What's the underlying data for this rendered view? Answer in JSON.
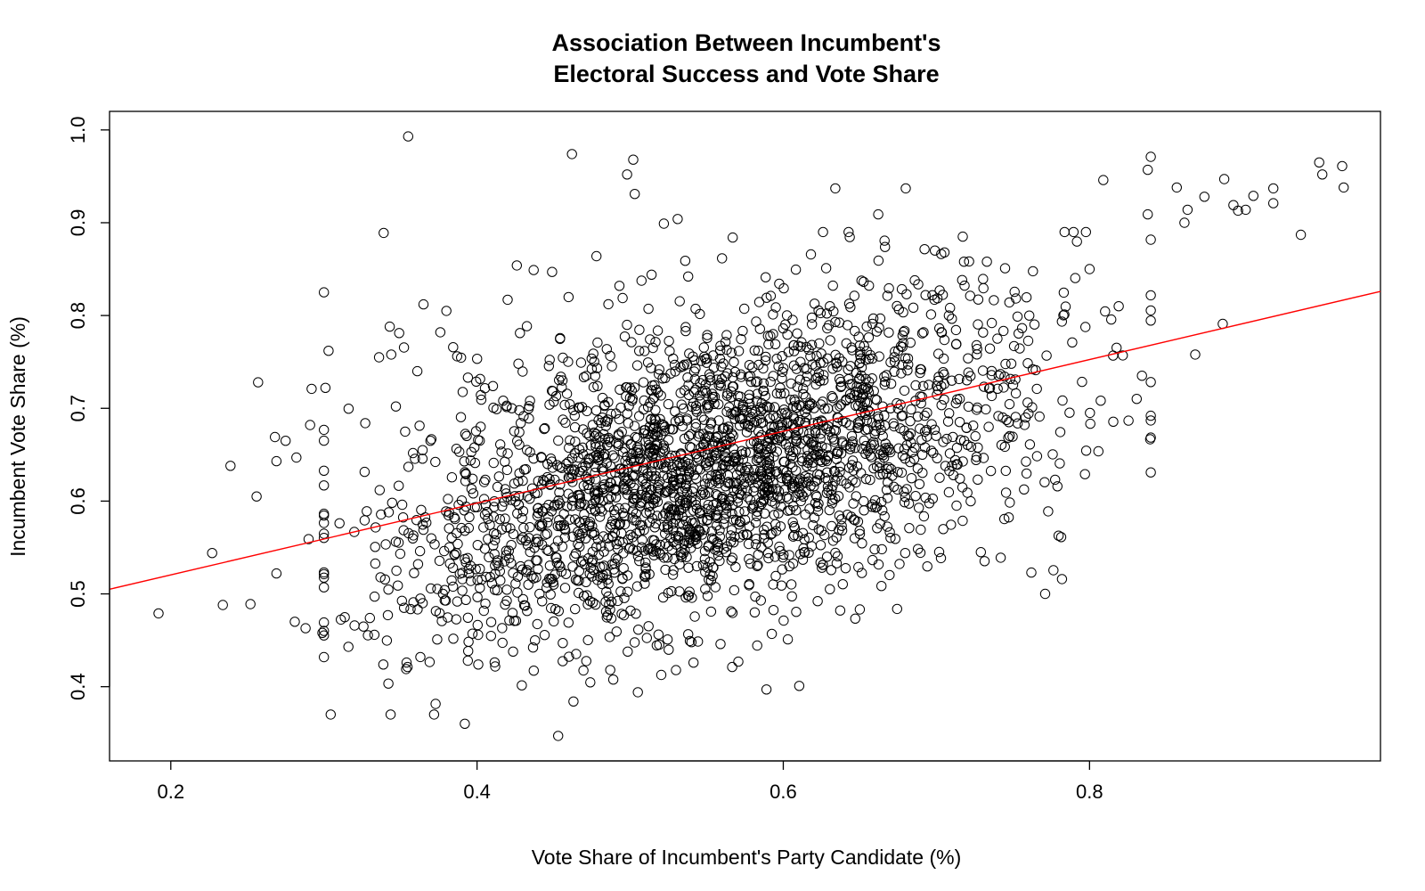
{
  "chart_data": {
    "type": "scatter",
    "title_lines": [
      "Association Between Incumbent's",
      "Electoral Success and Vote Share"
    ],
    "xlabel": "Vote Share of Incumbent's Party Candidate (%)",
    "ylabel": "Incumbent Vote Share (%)",
    "xlim": [
      0.16,
      0.99
    ],
    "ylim": [
      0.32,
      1.02
    ],
    "xticks": [
      "0.2",
      "0.4",
      "0.6",
      "0.8"
    ],
    "yticks": [
      "0.4",
      "0.5",
      "0.6",
      "0.7",
      "0.8",
      "0.9",
      "1.0"
    ],
    "point_style": "open-circle",
    "point_color": "#000000",
    "fit_line_color": "#ff0000",
    "grid": false,
    "legend": "none",
    "fit_line": {
      "x": [
        0.16,
        0.99
      ],
      "y": [
        0.505,
        0.826
      ]
    },
    "n_points_generated": 2600,
    "points": [
      [
        0.192,
        0.479
      ],
      [
        0.227,
        0.544
      ],
      [
        0.234,
        0.488
      ],
      [
        0.239,
        0.638
      ],
      [
        0.252,
        0.489
      ],
      [
        0.256,
        0.605
      ],
      [
        0.257,
        0.728
      ],
      [
        0.268,
        0.669
      ],
      [
        0.269,
        0.522
      ],
      [
        0.269,
        0.643
      ],
      [
        0.275,
        0.665
      ],
      [
        0.281,
        0.47
      ],
      [
        0.282,
        0.647
      ],
      [
        0.288,
        0.463
      ],
      [
        0.29,
        0.559
      ],
      [
        0.291,
        0.682
      ],
      [
        0.292,
        0.721
      ],
      [
        0.299,
        0.458
      ],
      [
        0.3,
        0.825
      ],
      [
        0.301,
        0.722
      ],
      [
        0.303,
        0.762
      ],
      [
        0.316,
        0.443
      ],
      [
        0.32,
        0.466
      ],
      [
        0.327,
        0.684
      ],
      [
        0.333,
        0.456
      ],
      [
        0.336,
        0.755
      ],
      [
        0.339,
        0.889
      ],
      [
        0.343,
        0.788
      ],
      [
        0.344,
        0.758
      ],
      [
        0.347,
        0.702
      ],
      [
        0.354,
        0.426
      ],
      [
        0.355,
        0.993
      ],
      [
        0.361,
        0.74
      ],
      [
        0.363,
        0.432
      ],
      [
        0.365,
        0.812
      ],
      [
        0.376,
        0.782
      ],
      [
        0.38,
        0.805
      ],
      [
        0.387,
        0.756
      ],
      [
        0.392,
        0.36
      ],
      [
        0.394,
        0.428
      ],
      [
        0.42,
        0.817
      ],
      [
        0.426,
        0.854
      ],
      [
        0.437,
        0.849
      ],
      [
        0.449,
        0.847
      ],
      [
        0.453,
        0.347
      ],
      [
        0.456,
        0.447
      ],
      [
        0.462,
        0.974
      ],
      [
        0.463,
        0.384
      ],
      [
        0.478,
        0.864
      ],
      [
        0.487,
        0.418
      ],
      [
        0.493,
        0.832
      ],
      [
        0.498,
        0.952
      ],
      [
        0.502,
        0.968
      ],
      [
        0.503,
        0.931
      ],
      [
        0.505,
        0.394
      ],
      [
        0.514,
        0.844
      ],
      [
        0.522,
        0.899
      ],
      [
        0.531,
        0.904
      ],
      [
        0.536,
        0.859
      ],
      [
        0.559,
        0.446
      ],
      [
        0.567,
        0.884
      ],
      [
        0.589,
        0.397
      ],
      [
        0.603,
        0.451
      ],
      [
        0.628,
        0.851
      ],
      [
        0.634,
        0.937
      ],
      [
        0.662,
        0.909
      ],
      [
        0.68,
        0.937
      ],
      [
        0.699,
        0.87
      ],
      [
        0.718,
        0.858
      ],
      [
        0.729,
        0.545
      ],
      [
        0.733,
        0.858
      ],
      [
        0.742,
        0.539
      ],
      [
        0.762,
        0.523
      ],
      [
        0.771,
        0.5
      ],
      [
        0.773,
        0.589
      ],
      [
        0.782,
        0.516
      ],
      [
        0.797,
        0.629
      ],
      [
        0.809,
        0.946
      ],
      [
        0.838,
        0.957
      ],
      [
        0.84,
        0.971
      ],
      [
        0.838,
        0.909
      ],
      [
        0.857,
        0.938
      ],
      [
        0.862,
        0.9
      ],
      [
        0.864,
        0.914
      ],
      [
        0.869,
        0.758
      ],
      [
        0.875,
        0.928
      ],
      [
        0.887,
        0.791
      ],
      [
        0.888,
        0.947
      ],
      [
        0.894,
        0.919
      ],
      [
        0.897,
        0.913
      ],
      [
        0.902,
        0.914
      ],
      [
        0.907,
        0.929
      ],
      [
        0.92,
        0.937
      ],
      [
        0.92,
        0.921
      ],
      [
        0.938,
        0.887
      ],
      [
        0.95,
        0.965
      ],
      [
        0.952,
        0.952
      ],
      [
        0.965,
        0.961
      ],
      [
        0.966,
        0.938
      ]
    ]
  }
}
